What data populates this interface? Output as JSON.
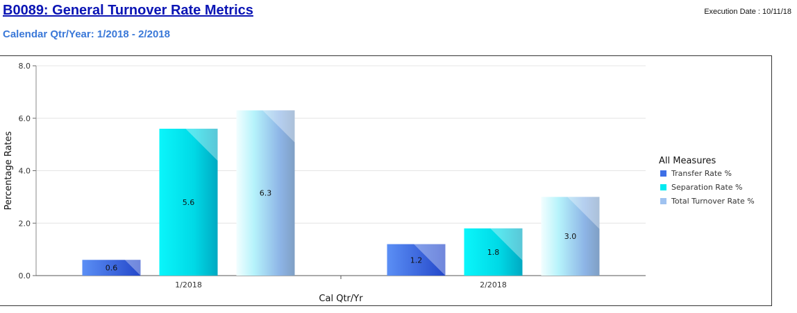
{
  "header": {
    "title": "B0089: General Turnover Rate Metrics",
    "execution_date": "Execution Date : 10/11/18",
    "subtitle": "Calendar Qtr/Year:  1/2018 - 2/2018"
  },
  "chart_data": {
    "type": "bar",
    "categories": [
      "1/2018",
      "2/2018"
    ],
    "series": [
      {
        "name": "Transfer Rate %",
        "values": [
          0.6,
          1.2
        ],
        "color": "#3d6fe6"
      },
      {
        "name": "Separation Rate %",
        "values": [
          5.6,
          1.8
        ],
        "color": "#00eaf0"
      },
      {
        "name": "Total Turnover Rate %",
        "values": [
          6.3,
          3.0
        ],
        "color": "#9fc2f0"
      }
    ],
    "xlabel": "Cal Qtr/Yr",
    "ylabel": "Percentage Rates",
    "ylim": [
      0,
      8
    ],
    "yticks": [
      "0.0",
      "2.0",
      "4.0",
      "6.0",
      "8.0"
    ],
    "legend_title": "All Measures",
    "legend_position": "right",
    "grid": true
  }
}
